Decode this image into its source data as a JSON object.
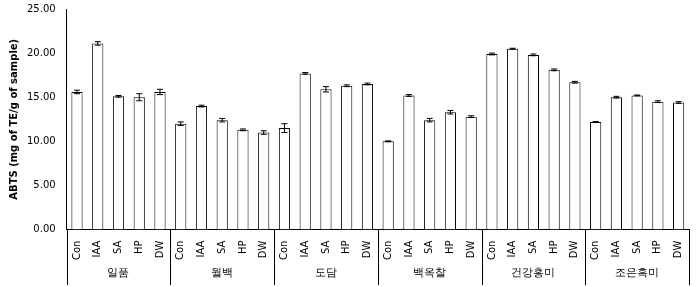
{
  "chart_data": {
    "type": "bar",
    "y_label": "ABTS (mg of TE/g of sample)",
    "categories": [
      "Con",
      "IAA",
      "SA",
      "HP",
      "DW",
      "Con",
      "IAA",
      "SA",
      "HP",
      "DW",
      "Con",
      "IAA",
      "SA",
      "HP",
      "DW",
      "Con",
      "IAA",
      "SA",
      "HP",
      "DW",
      "Con",
      "IAA",
      "SA",
      "HP",
      "DW",
      "Con",
      "IAA",
      "SA",
      "HP",
      "DW"
    ],
    "group_labels": [
      "일품",
      "월백",
      "도담",
      "백옥찰",
      "건강홍미",
      "조은흑미"
    ],
    "values": [
      15.6,
      21.1,
      15.1,
      15.0,
      15.6,
      12.0,
      14.0,
      12.4,
      11.3,
      11.0,
      11.5,
      17.7,
      15.9,
      16.3,
      16.5,
      10.0,
      15.2,
      12.4,
      13.3,
      12.8,
      19.9,
      20.5,
      19.8,
      18.1,
      16.7,
      12.2,
      15.0,
      15.2,
      14.5,
      14.4
    ],
    "errors": [
      0.2,
      0.2,
      0.1,
      0.4,
      0.3,
      0.2,
      0.1,
      0.2,
      0.1,
      0.2,
      0.5,
      0.1,
      0.3,
      0.1,
      0.1,
      0.05,
      0.1,
      0.2,
      0.2,
      0.1,
      0.1,
      0.05,
      0.1,
      0.1,
      0.1,
      0.05,
      0.1,
      0.05,
      0.1,
      0.1
    ],
    "color": "#ffffff",
    "ylim": [
      0,
      25
    ],
    "yticks": [
      {
        "value": 0,
        "label": "0.00"
      },
      {
        "value": 5,
        "label": "5.00"
      },
      {
        "value": 10,
        "label": "10.00"
      },
      {
        "value": 15,
        "label": "15.00"
      },
      {
        "value": 20,
        "label": "20.00"
      },
      {
        "value": 25,
        "label": "25.00"
      }
    ],
    "grid": false
  }
}
